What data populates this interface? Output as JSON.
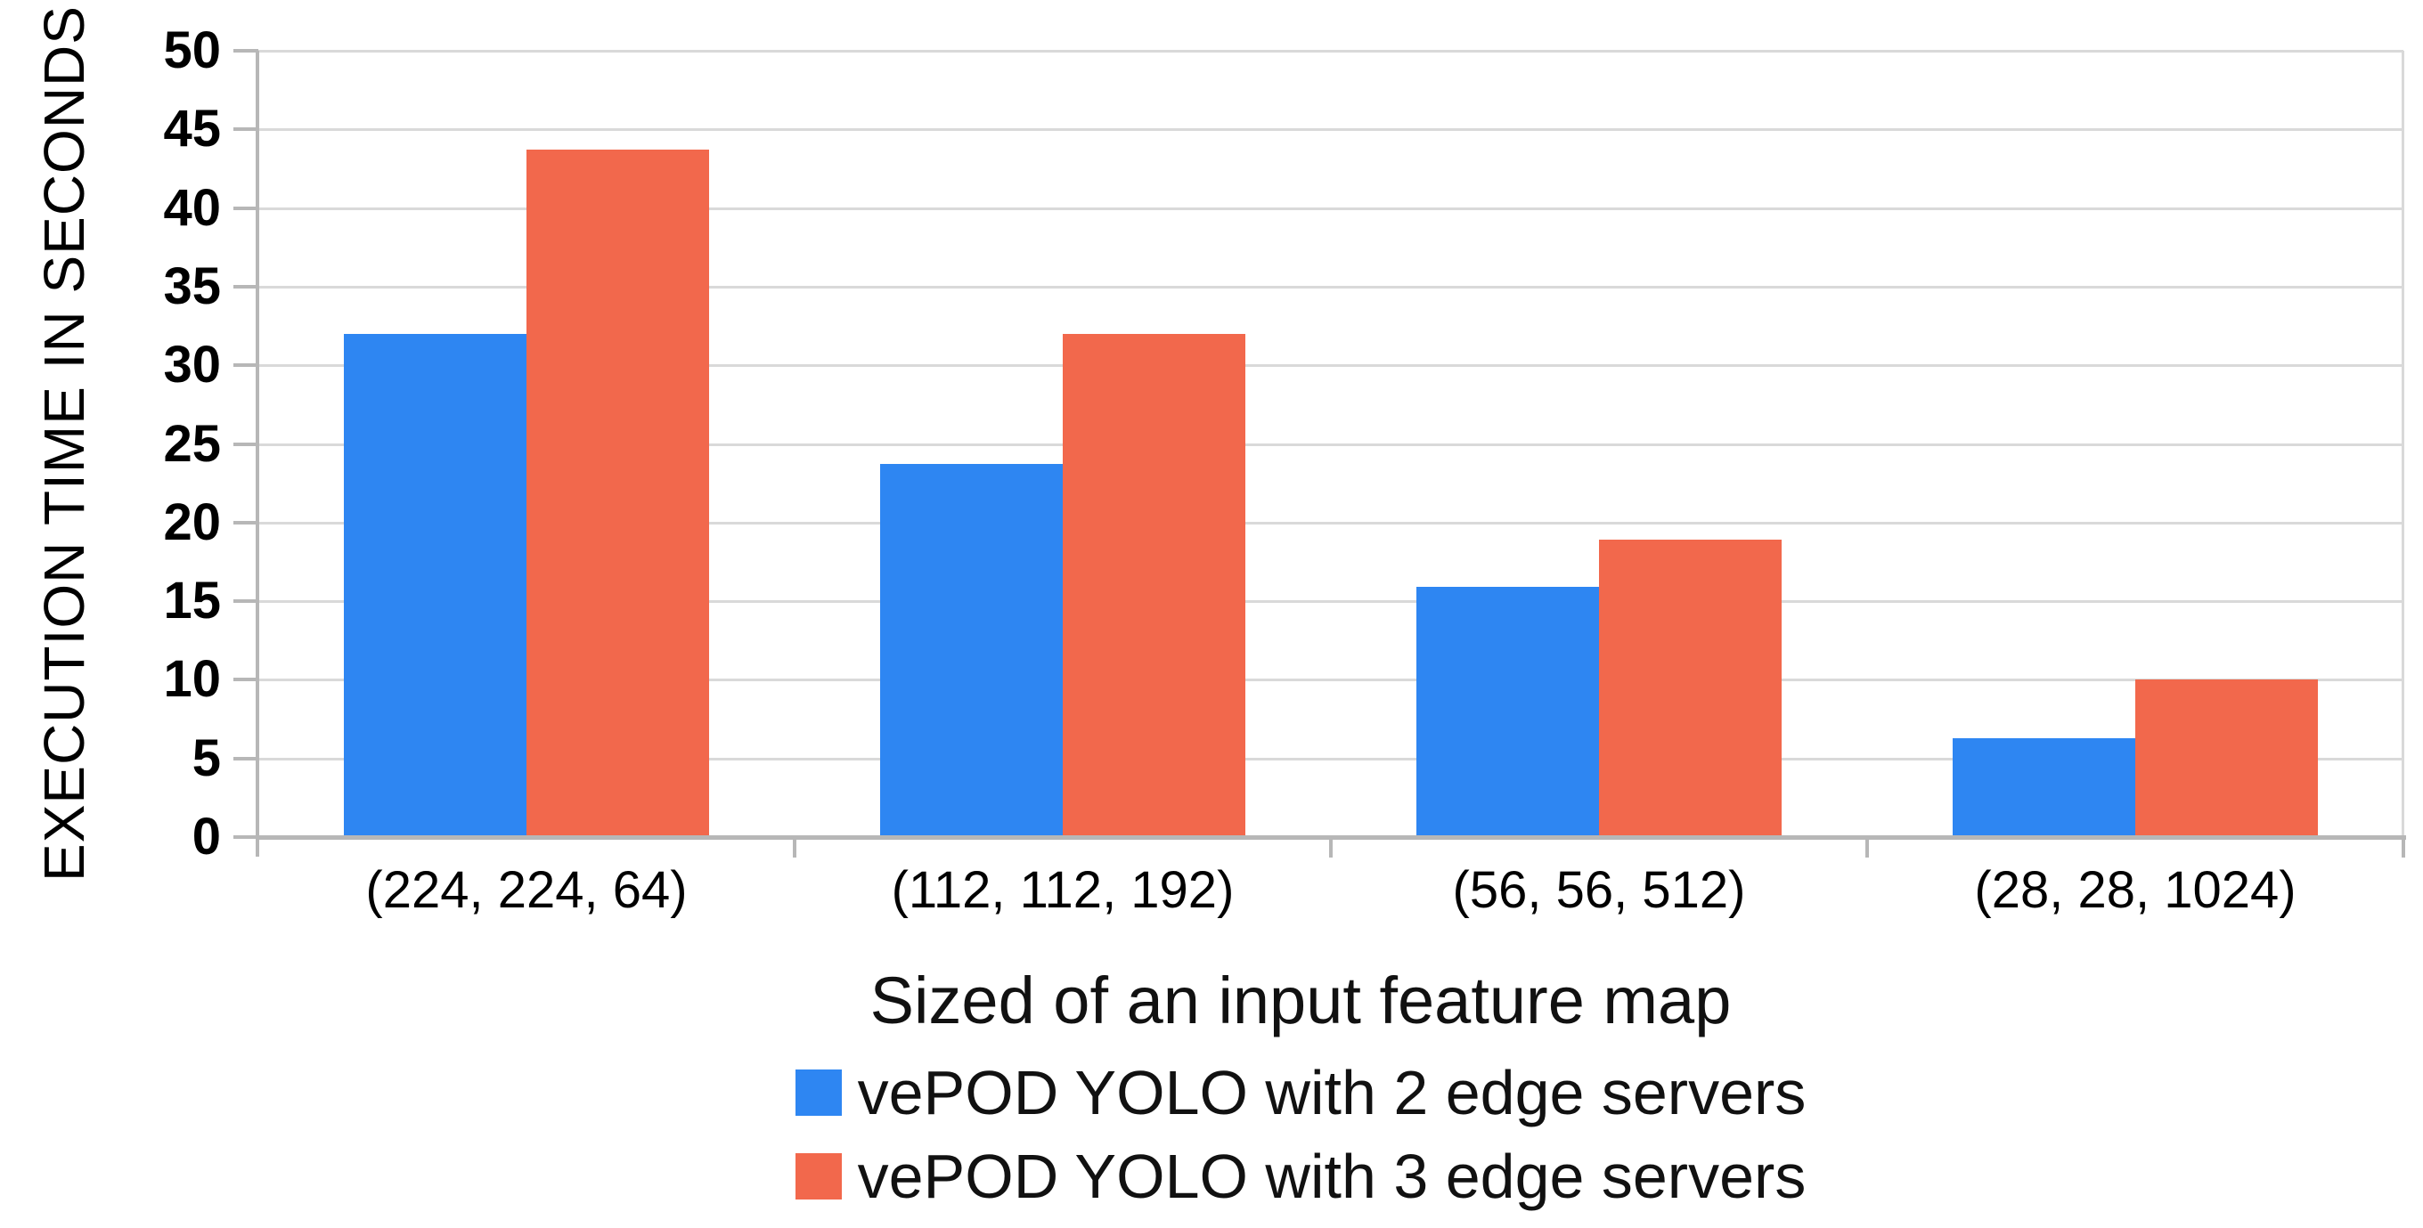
{
  "chart_data": {
    "type": "bar",
    "title": "",
    "xlabel": "Sized of an input feature map",
    "ylabel": "EXECUTION TIME IN SECONDS",
    "categories": [
      "(224, 224, 64)",
      "(112, 112, 192)",
      "(56, 56, 512)",
      "(28, 28, 1024)"
    ],
    "series": [
      {
        "name": "vePOD YOLO with 2 edge servers",
        "color": "#2e86f2",
        "values": [
          32,
          23.7,
          15.9,
          6.3
        ]
      },
      {
        "name": "vePOD YOLO with 3 edge servers",
        "color": "#f2684c",
        "values": [
          43.7,
          32,
          18.9,
          10
        ]
      }
    ],
    "ylim": [
      0,
      50
    ],
    "ytick_step": 5,
    "grid": true,
    "legend_position": "bottom",
    "colors": {
      "gridline": "#d9d9d9",
      "axis": "#b7b7b7",
      "text": "#000000"
    }
  }
}
